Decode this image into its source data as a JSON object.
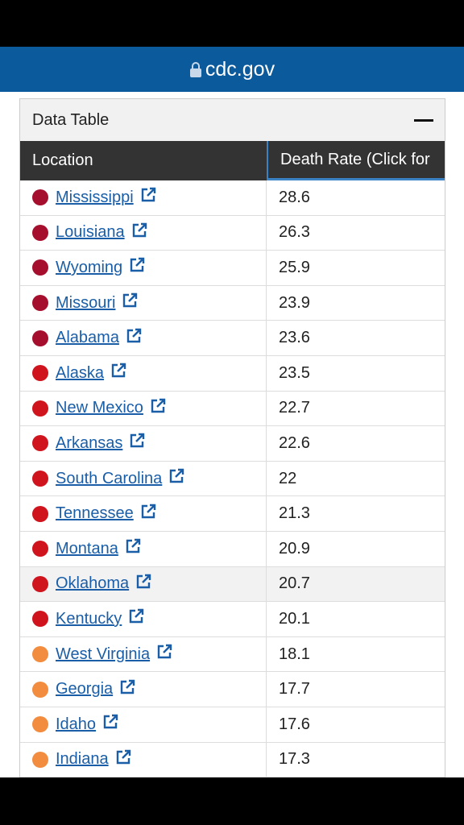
{
  "header": {
    "domain": "cdc.gov"
  },
  "table": {
    "title": "Data Table",
    "columns": [
      "Location",
      "Death Rate (Click for"
    ],
    "highlighted_row": 11,
    "rows": [
      {
        "location": "Mississippi",
        "rate": 28.6,
        "color": "#a50f2d"
      },
      {
        "location": "Louisiana",
        "rate": 26.3,
        "color": "#a50f2d"
      },
      {
        "location": "Wyoming",
        "rate": 25.9,
        "color": "#a50f2d"
      },
      {
        "location": "Missouri",
        "rate": 23.9,
        "color": "#a50f2d"
      },
      {
        "location": "Alabama",
        "rate": 23.6,
        "color": "#a50f2d"
      },
      {
        "location": "Alaska",
        "rate": 23.5,
        "color": "#d0141e"
      },
      {
        "location": "New Mexico",
        "rate": 22.7,
        "color": "#d0141e"
      },
      {
        "location": "Arkansas",
        "rate": 22.6,
        "color": "#d0141e"
      },
      {
        "location": "South Carolina",
        "rate": 22,
        "color": "#d0141e"
      },
      {
        "location": "Tennessee",
        "rate": 21.3,
        "color": "#d0141e"
      },
      {
        "location": "Montana",
        "rate": 20.9,
        "color": "#d0141e"
      },
      {
        "location": "Oklahoma",
        "rate": 20.7,
        "color": "#d0141e"
      },
      {
        "location": "Kentucky",
        "rate": 20.1,
        "color": "#d0141e"
      },
      {
        "location": "West Virginia",
        "rate": 18.1,
        "color": "#f28c3f"
      },
      {
        "location": "Georgia",
        "rate": 17.7,
        "color": "#f28c3f"
      },
      {
        "location": "Idaho",
        "rate": 17.6,
        "color": "#f28c3f"
      },
      {
        "location": "Indiana",
        "rate": 17.3,
        "color": "#f28c3f"
      }
    ]
  }
}
